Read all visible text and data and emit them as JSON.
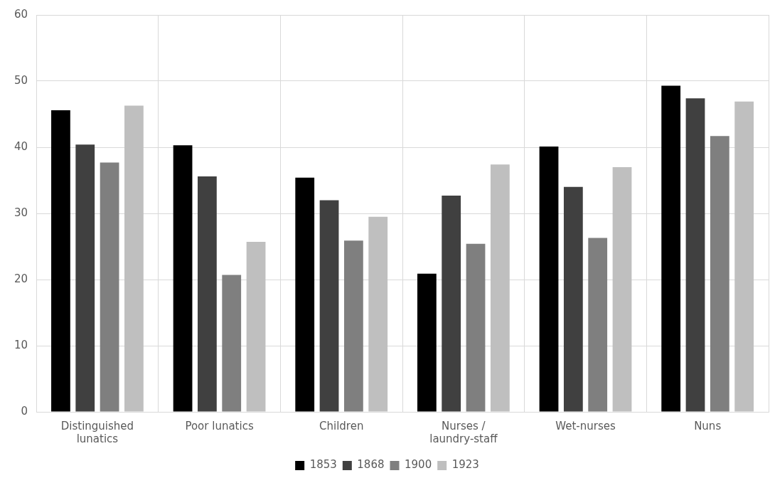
{
  "chart_data": {
    "type": "bar",
    "categories": [
      "Distinguished lunatics",
      "Poor lunatics",
      "Children",
      "Nurses / laundry-staff",
      "Wet-nurses",
      "Nuns"
    ],
    "series": [
      {
        "name": "1853",
        "color": "#000000",
        "values": [
          45.6,
          40.3,
          35.4,
          20.9,
          40.1,
          49.3
        ]
      },
      {
        "name": "1868",
        "color": "#404040",
        "values": [
          40.4,
          35.6,
          32.0,
          32.7,
          34.0,
          47.4
        ]
      },
      {
        "name": "1900",
        "color": "#7f7f7f",
        "values": [
          37.7,
          20.7,
          25.9,
          25.4,
          26.3,
          41.7
        ]
      },
      {
        "name": "1923",
        "color": "#bfbfbf",
        "values": [
          46.3,
          25.7,
          29.5,
          37.4,
          37.0,
          46.9
        ]
      }
    ],
    "ylim": [
      0,
      60
    ],
    "yticks": [
      0,
      10,
      20,
      30,
      40,
      50,
      60
    ],
    "grid": true,
    "legend": "bottom"
  }
}
